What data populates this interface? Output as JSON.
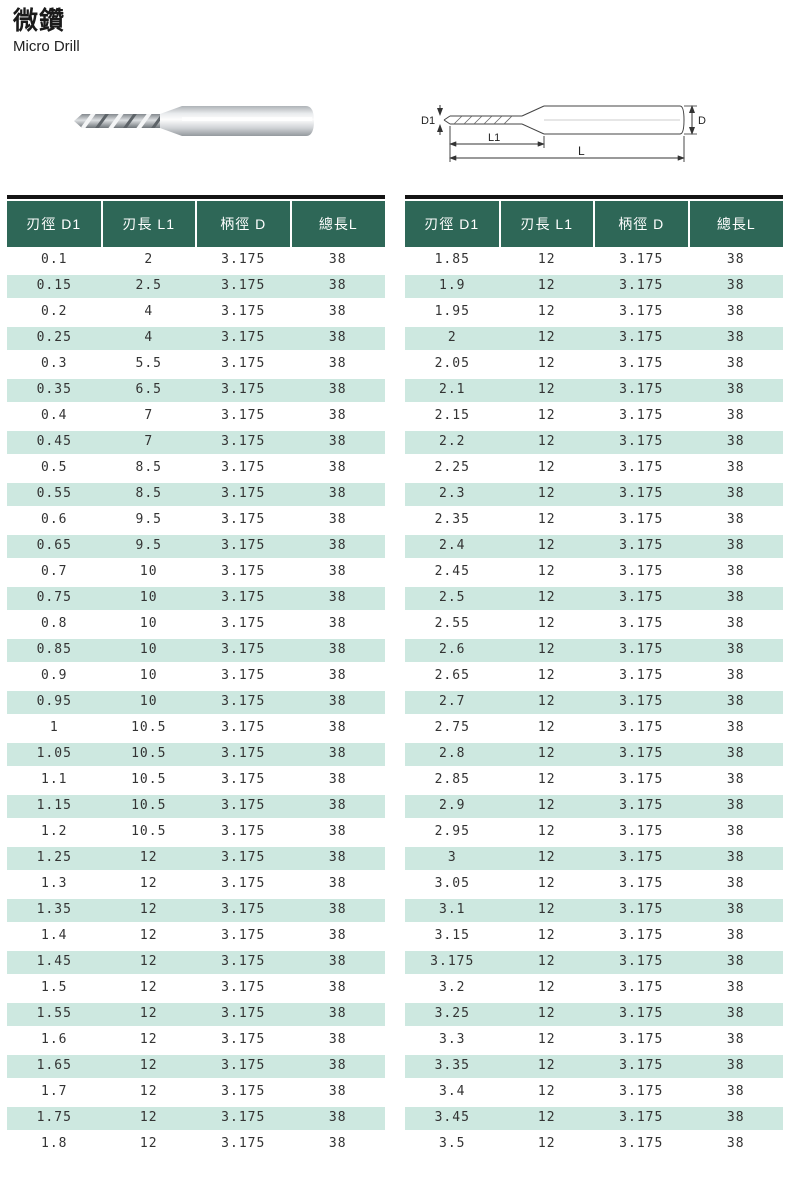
{
  "page": {
    "title_zh": "微鑽",
    "title_en": "Micro Drill"
  },
  "diagram_labels": {
    "d1": "D1",
    "l1": "L1",
    "l": "L",
    "d": "D"
  },
  "tables": {
    "headers": [
      "刃徑 D1",
      "刃長 L1",
      "柄徑 D",
      "總長L"
    ],
    "left": {
      "rows": [
        [
          "0.1",
          "2",
          "3.175",
          "38"
        ],
        [
          "0.15",
          "2.5",
          "3.175",
          "38"
        ],
        [
          "0.2",
          "4",
          "3.175",
          "38"
        ],
        [
          "0.25",
          "4",
          "3.175",
          "38"
        ],
        [
          "0.3",
          "5.5",
          "3.175",
          "38"
        ],
        [
          "0.35",
          "6.5",
          "3.175",
          "38"
        ],
        [
          "0.4",
          "7",
          "3.175",
          "38"
        ],
        [
          "0.45",
          "7",
          "3.175",
          "38"
        ],
        [
          "0.5",
          "8.5",
          "3.175",
          "38"
        ],
        [
          "0.55",
          "8.5",
          "3.175",
          "38"
        ],
        [
          "0.6",
          "9.5",
          "3.175",
          "38"
        ],
        [
          "0.65",
          "9.5",
          "3.175",
          "38"
        ],
        [
          "0.7",
          "10",
          "3.175",
          "38"
        ],
        [
          "0.75",
          "10",
          "3.175",
          "38"
        ],
        [
          "0.8",
          "10",
          "3.175",
          "38"
        ],
        [
          "0.85",
          "10",
          "3.175",
          "38"
        ],
        [
          "0.9",
          "10",
          "3.175",
          "38"
        ],
        [
          "0.95",
          "10",
          "3.175",
          "38"
        ],
        [
          "1",
          "10.5",
          "3.175",
          "38"
        ],
        [
          "1.05",
          "10.5",
          "3.175",
          "38"
        ],
        [
          "1.1",
          "10.5",
          "3.175",
          "38"
        ],
        [
          "1.15",
          "10.5",
          "3.175",
          "38"
        ],
        [
          "1.2",
          "10.5",
          "3.175",
          "38"
        ],
        [
          "1.25",
          "12",
          "3.175",
          "38"
        ],
        [
          "1.3",
          "12",
          "3.175",
          "38"
        ],
        [
          "1.35",
          "12",
          "3.175",
          "38"
        ],
        [
          "1.4",
          "12",
          "3.175",
          "38"
        ],
        [
          "1.45",
          "12",
          "3.175",
          "38"
        ],
        [
          "1.5",
          "12",
          "3.175",
          "38"
        ],
        [
          "1.55",
          "12",
          "3.175",
          "38"
        ],
        [
          "1.6",
          "12",
          "3.175",
          "38"
        ],
        [
          "1.65",
          "12",
          "3.175",
          "38"
        ],
        [
          "1.7",
          "12",
          "3.175",
          "38"
        ],
        [
          "1.75",
          "12",
          "3.175",
          "38"
        ],
        [
          "1.8",
          "12",
          "3.175",
          "38"
        ]
      ]
    },
    "right": {
      "rows": [
        [
          "1.85",
          "12",
          "3.175",
          "38"
        ],
        [
          "1.9",
          "12",
          "3.175",
          "38"
        ],
        [
          "1.95",
          "12",
          "3.175",
          "38"
        ],
        [
          "2",
          "12",
          "3.175",
          "38"
        ],
        [
          "2.05",
          "12",
          "3.175",
          "38"
        ],
        [
          "2.1",
          "12",
          "3.175",
          "38"
        ],
        [
          "2.15",
          "12",
          "3.175",
          "38"
        ],
        [
          "2.2",
          "12",
          "3.175",
          "38"
        ],
        [
          "2.25",
          "12",
          "3.175",
          "38"
        ],
        [
          "2.3",
          "12",
          "3.175",
          "38"
        ],
        [
          "2.35",
          "12",
          "3.175",
          "38"
        ],
        [
          "2.4",
          "12",
          "3.175",
          "38"
        ],
        [
          "2.45",
          "12",
          "3.175",
          "38"
        ],
        [
          "2.5",
          "12",
          "3.175",
          "38"
        ],
        [
          "2.55",
          "12",
          "3.175",
          "38"
        ],
        [
          "2.6",
          "12",
          "3.175",
          "38"
        ],
        [
          "2.65",
          "12",
          "3.175",
          "38"
        ],
        [
          "2.7",
          "12",
          "3.175",
          "38"
        ],
        [
          "2.75",
          "12",
          "3.175",
          "38"
        ],
        [
          "2.8",
          "12",
          "3.175",
          "38"
        ],
        [
          "2.85",
          "12",
          "3.175",
          "38"
        ],
        [
          "2.9",
          "12",
          "3.175",
          "38"
        ],
        [
          "2.95",
          "12",
          "3.175",
          "38"
        ],
        [
          "3",
          "12",
          "3.175",
          "38"
        ],
        [
          "3.05",
          "12",
          "3.175",
          "38"
        ],
        [
          "3.1",
          "12",
          "3.175",
          "38"
        ],
        [
          "3.15",
          "12",
          "3.175",
          "38"
        ],
        [
          "3.175",
          "12",
          "3.175",
          "38"
        ],
        [
          "3.2",
          "12",
          "3.175",
          "38"
        ],
        [
          "3.25",
          "12",
          "3.175",
          "38"
        ],
        [
          "3.3",
          "12",
          "3.175",
          "38"
        ],
        [
          "3.35",
          "12",
          "3.175",
          "38"
        ],
        [
          "3.4",
          "12",
          "3.175",
          "38"
        ],
        [
          "3.45",
          "12",
          "3.175",
          "38"
        ],
        [
          "3.5",
          "12",
          "3.175",
          "38"
        ]
      ]
    }
  },
  "colors": {
    "header_bg": "#2e6757",
    "header_text": "#ffffff",
    "stripe_bg": "#cde8e0",
    "body_text": "#333333",
    "topbar": "#141414"
  }
}
